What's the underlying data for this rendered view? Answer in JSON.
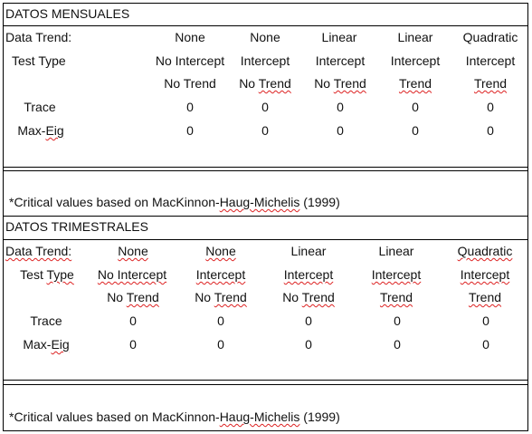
{
  "sections": [
    {
      "title": "DATOS MENSUALES",
      "data_trend_label": "Data Trend:",
      "test_type_label": "Test Type",
      "columns": [
        {
          "data_trend": "None",
          "line1": "No Intercept",
          "line2": "No Trend"
        },
        {
          "data_trend": "None",
          "line1": "Intercept",
          "line2": "No Trend"
        },
        {
          "data_trend": "Linear",
          "line1": "Intercept",
          "line2": "No Trend"
        },
        {
          "data_trend": "Linear",
          "line1": "Intercept",
          "line2": "Trend"
        },
        {
          "data_trend": "Quadratic",
          "line1": "Intercept",
          "line2": "Trend"
        }
      ],
      "rows": [
        {
          "label": "Trace",
          "values": [
            "0",
            "0",
            "0",
            "0",
            "0"
          ]
        },
        {
          "label": "Max-Eig",
          "values": [
            "0",
            "0",
            "0",
            "0",
            "0"
          ]
        }
      ],
      "footnote": "*Critical values based on MacKinnon-Haug-Michelis (1999)"
    },
    {
      "title": "DATOS TRIMESTRALES",
      "data_trend_label": "Data Trend:",
      "test_type_label": "Test Type",
      "columns": [
        {
          "data_trend": "None",
          "line1": "No Intercept",
          "line2": "No Trend"
        },
        {
          "data_trend": "None",
          "line1": "Intercept",
          "line2": "No Trend"
        },
        {
          "data_trend": "Linear",
          "line1": "Intercept",
          "line2": "No Trend"
        },
        {
          "data_trend": "Linear",
          "line1": "Intercept",
          "line2": "Trend"
        },
        {
          "data_trend": "Quadratic",
          "line1": "Intercept",
          "line2": "Trend"
        }
      ],
      "rows": [
        {
          "label": "Trace",
          "values": [
            "0",
            "0",
            "0",
            "0",
            "0"
          ]
        },
        {
          "label": "Max-Eig",
          "values": [
            "0",
            "0",
            "0",
            "0",
            "0"
          ]
        }
      ],
      "footnote": "*Critical values based on MacKinnon-Haug-Michelis (1999)"
    }
  ]
}
